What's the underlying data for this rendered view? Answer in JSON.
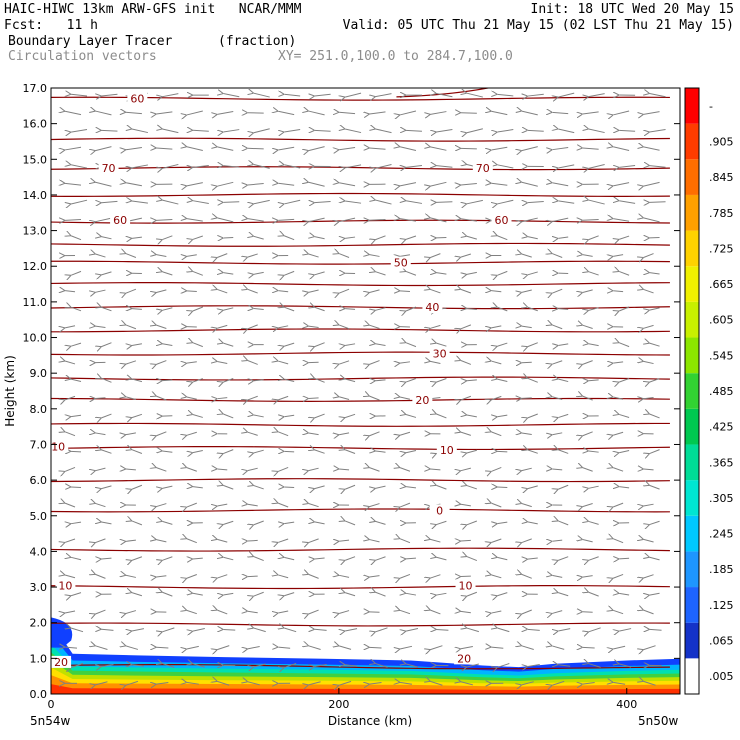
{
  "header": {
    "line1_left": "HAIC-HIWC 13km ARW-GFS init   NCAR/MMM",
    "line1_right": "Init: 18 UTC Wed 20 May 15",
    "line2_left": "Fcst:   11 h",
    "line2_right": "Valid: 05 UTC Thu 21 May 15 (02 LST Thu 21 May 15)",
    "field_name": "Boundary Layer Tracer",
    "field_units": "(fraction)",
    "vector_label": "Circulation vectors",
    "xy_label": "XY= 251.0,100.0 to 284.7,100.0"
  },
  "chart_data": {
    "type": "cross-section",
    "xlabel": "Distance (km)",
    "ylabel": "Height (km)",
    "xlim": [
      0,
      437
    ],
    "ylim": [
      0,
      17
    ],
    "x_ticks": [
      "0",
      "200",
      "400"
    ],
    "x_tick_values": [
      0,
      200,
      400
    ],
    "y_ticks": [
      "0.0",
      "1.0",
      "2.0",
      "3.0",
      "4.0",
      "5.0",
      "6.0",
      "7.0",
      "8.0",
      "9.0",
      "10.0",
      "11.0",
      "12.0",
      "13.0",
      "14.0",
      "15.0",
      "16.0",
      "17.0"
    ],
    "left_endpoint": "5n54w",
    "right_endpoint": "5n50w",
    "contour_color": "#8b0000",
    "contour_levels_km": [
      0.8,
      1.95,
      3.0,
      4.05,
      5.15,
      6.0,
      6.9,
      7.55,
      8.25,
      8.85,
      9.55,
      10.2,
      10.85,
      11.5,
      12.1,
      12.6,
      13.25,
      14.0,
      14.75,
      15.55,
      16.7
    ],
    "contour_labels": [
      {
        "text": "20",
        "x": 7,
        "y": 0.9
      },
      {
        "text": "20",
        "x": 287,
        "y": 1.0
      },
      {
        "text": "10",
        "x": 10,
        "y": 3.05
      },
      {
        "text": "10",
        "x": 288,
        "y": 3.05
      },
      {
        "text": "0",
        "x": 270,
        "y": 5.15
      },
      {
        "text": "10",
        "x": 5,
        "y": 6.95
      },
      {
        "text": "10",
        "x": 275,
        "y": 6.85
      },
      {
        "text": "20",
        "x": 258,
        "y": 8.25
      },
      {
        "text": "30",
        "x": 270,
        "y": 9.55
      },
      {
        "text": "40",
        "x": 265,
        "y": 10.85
      },
      {
        "text": "50",
        "x": 243,
        "y": 12.1
      },
      {
        "text": "60",
        "x": 48,
        "y": 13.3
      },
      {
        "text": "60",
        "x": 313,
        "y": 13.3
      },
      {
        "text": "70",
        "x": 40,
        "y": 14.75
      },
      {
        "text": "70",
        "x": 300,
        "y": 14.75
      },
      {
        "text": "60",
        "x": 60,
        "y": 16.7
      }
    ],
    "tracer_top_km": [
      {
        "x": 0,
        "y": 2.15
      },
      {
        "x": 15,
        "y": 1.2
      },
      {
        "x": 60,
        "y": 1.15
      },
      {
        "x": 120,
        "y": 1.1
      },
      {
        "x": 190,
        "y": 1.05
      },
      {
        "x": 250,
        "y": 1.0
      },
      {
        "x": 300,
        "y": 0.85
      },
      {
        "x": 325,
        "y": 0.8
      },
      {
        "x": 350,
        "y": 0.9
      },
      {
        "x": 400,
        "y": 1.0
      },
      {
        "x": 437,
        "y": 1.05
      }
    ],
    "tracer_bands": [
      {
        "frac": 0.06,
        "color": "#1040ff"
      },
      {
        "frac": 0.22,
        "color": "#00b4ff"
      },
      {
        "frac": 0.36,
        "color": "#00e0b0"
      },
      {
        "frac": 0.46,
        "color": "#40d040"
      },
      {
        "frac": 0.56,
        "color": "#c0e000"
      },
      {
        "frac": 0.66,
        "color": "#ffe000"
      },
      {
        "frac": 0.76,
        "color": "#ff9000"
      },
      {
        "frac": 0.88,
        "color": "#ff3000"
      }
    ],
    "colorbar": {
      "labels": [
        ".005",
        ".065",
        ".125",
        ".185",
        ".245",
        ".305",
        ".365",
        ".425",
        ".485",
        ".545",
        ".605",
        ".665",
        ".725",
        ".785",
        ".845",
        ".905",
        "-"
      ],
      "colors": [
        "#ffffff",
        "#1432c8",
        "#1e64ff",
        "#1e96ff",
        "#00c8ff",
        "#00e6d2",
        "#00dc96",
        "#00c850",
        "#32d232",
        "#8ce600",
        "#c8f000",
        "#f0f000",
        "#ffd200",
        "#ffa000",
        "#ff6e00",
        "#ff3c00",
        "#ff0000"
      ]
    }
  }
}
